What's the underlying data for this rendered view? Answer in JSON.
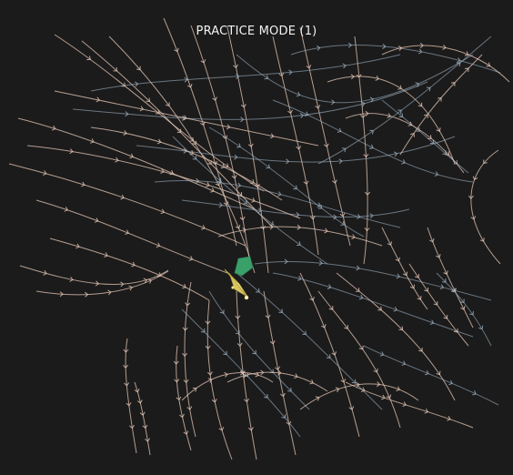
{
  "game": {
    "mode_title": "PRACTICE MODE (1)"
  },
  "colors": {
    "background": "#1b1b1b",
    "trail_warm": "#e8c9b8",
    "trail_cool": "#9fb3c4",
    "player_body": "#f2e27a",
    "player_wing": "#3aa06a"
  }
}
